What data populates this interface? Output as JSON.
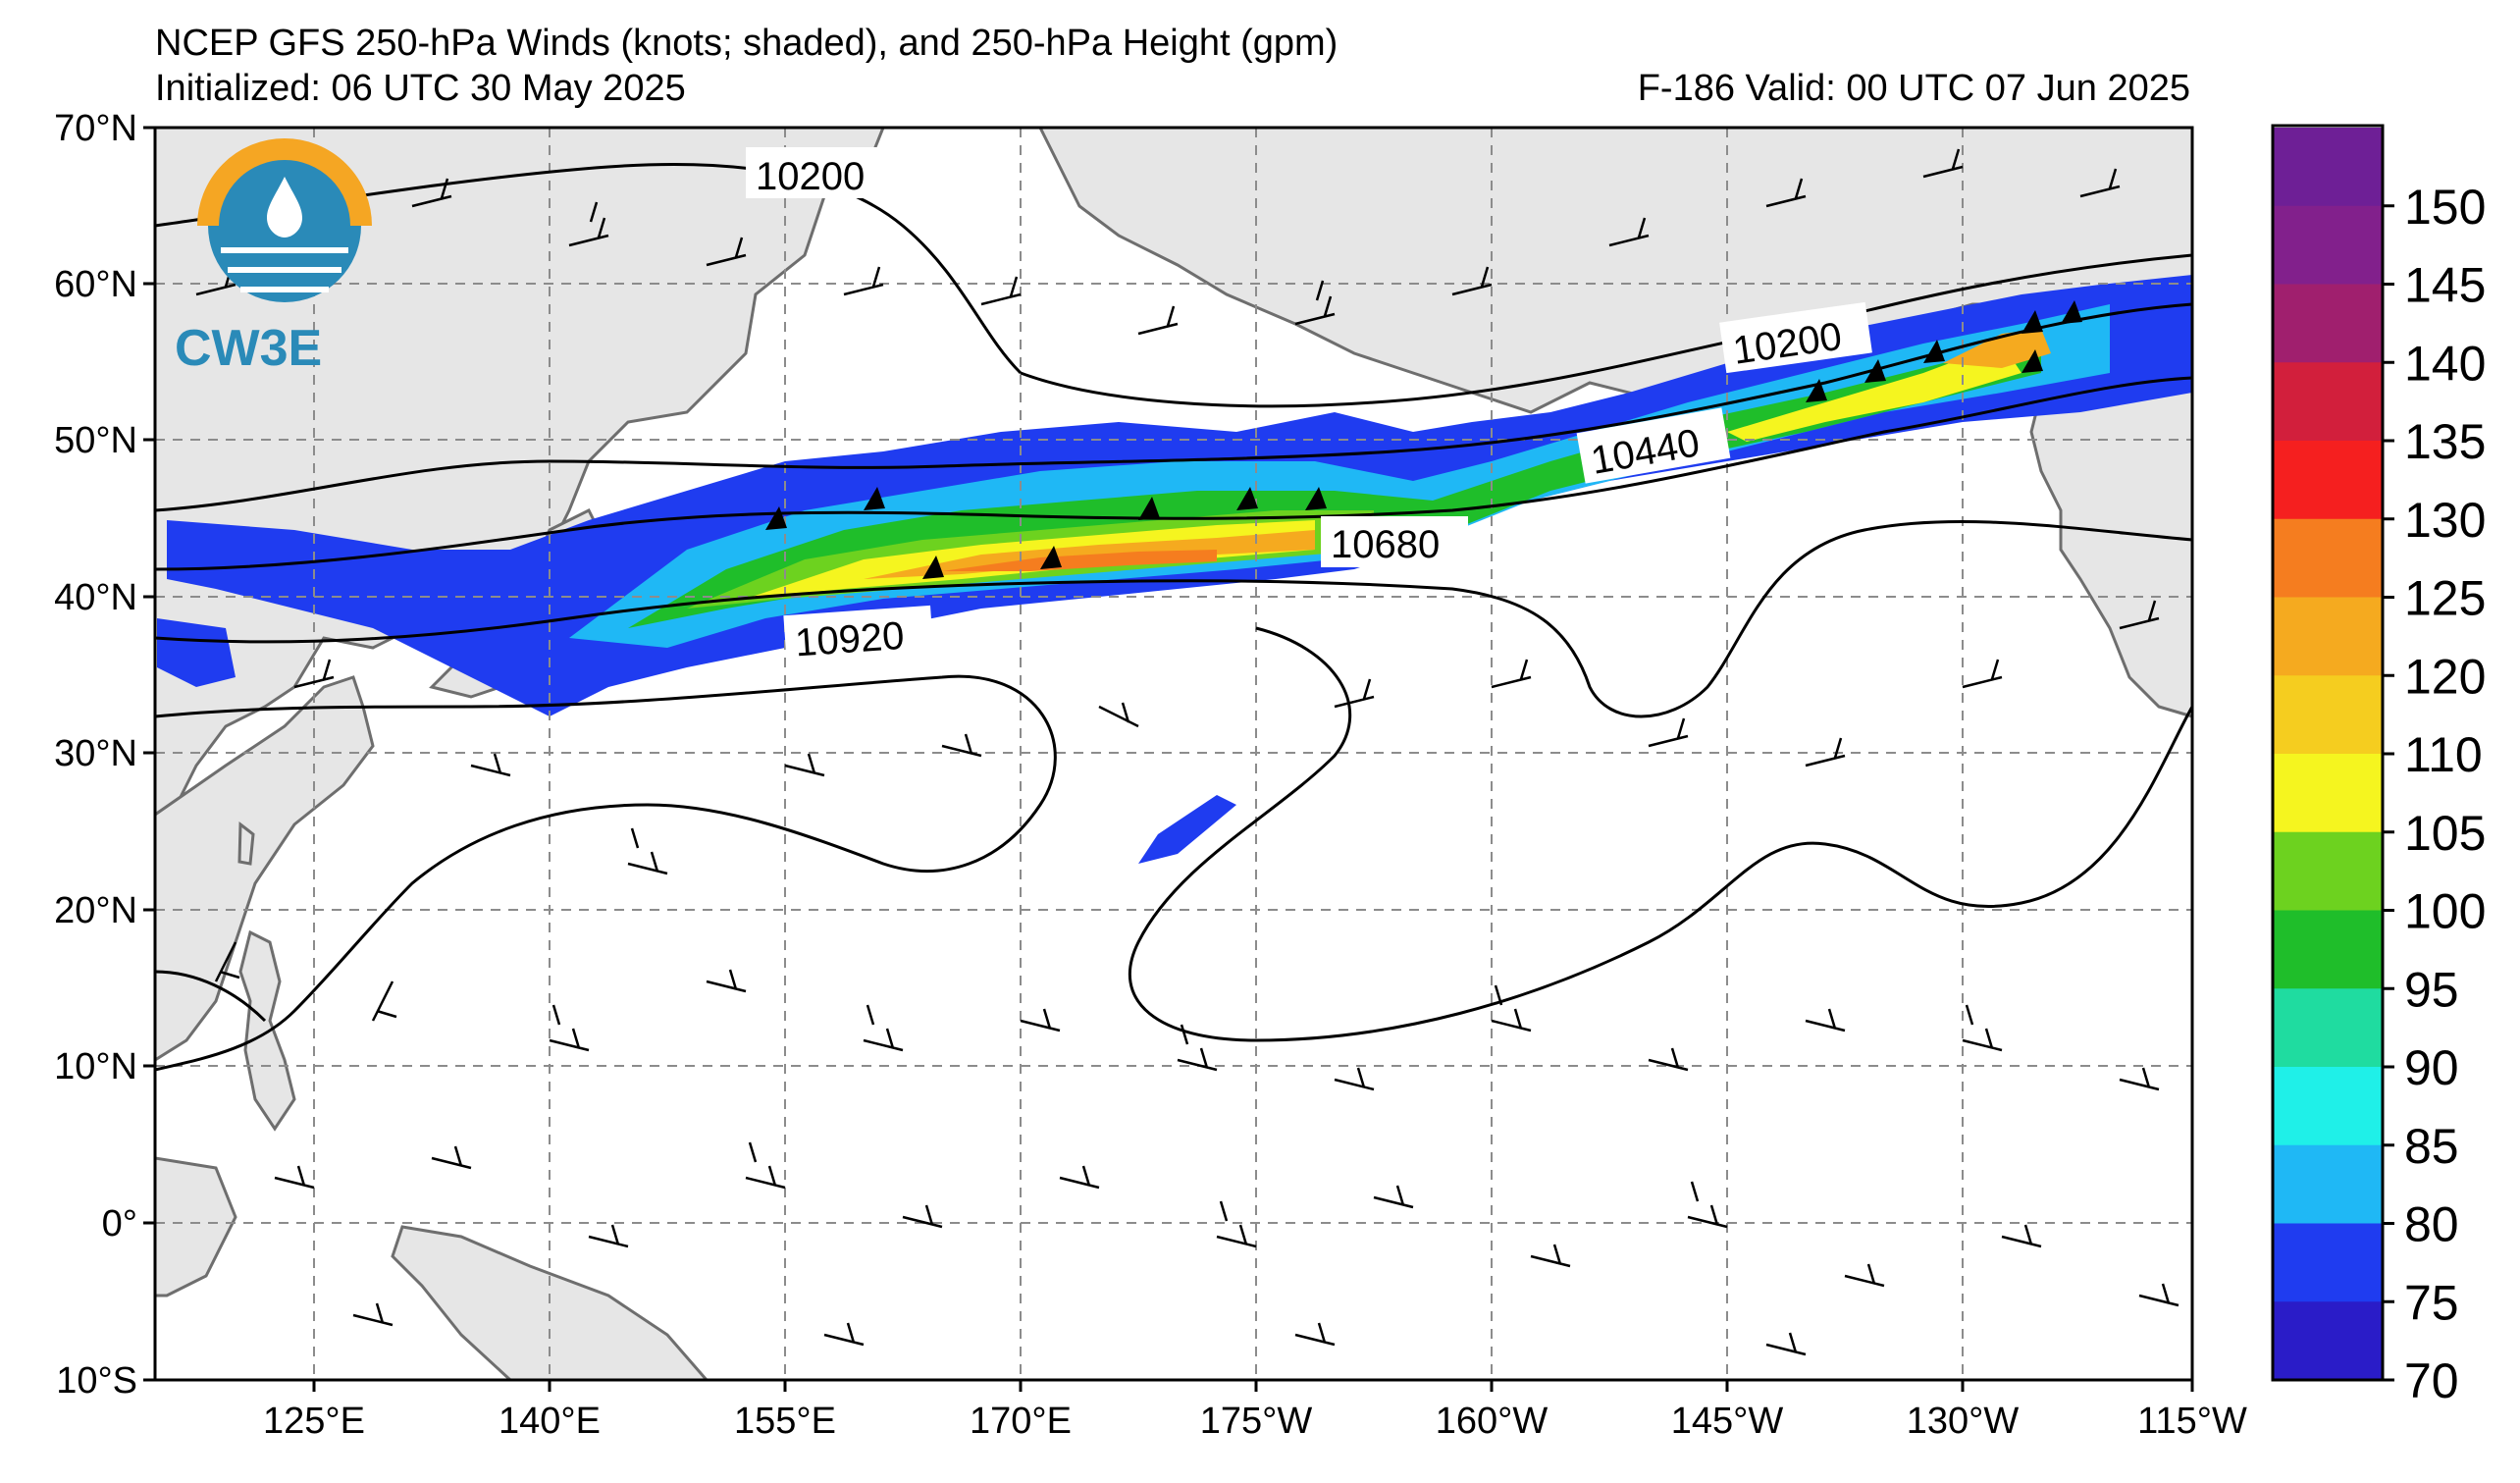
{
  "header": {
    "title": "NCEP GFS 250-hPa Winds (knots; shaded), and 250-hPa Height (gpm)",
    "initialized": "Initialized: 06 UTC 30 May 2025",
    "valid": "F-186  Valid: 00 UTC 07 Jun 2025"
  },
  "logo": {
    "text": "CW3E"
  },
  "map": {
    "lat_labels": [
      "70°N",
      "60°N",
      "50°N",
      "40°N",
      "30°N",
      "20°N",
      "10°N",
      "0°",
      "10°S"
    ],
    "lon_labels": [
      "125°E",
      "140°E",
      "155°E",
      "170°E",
      "175°W",
      "160°W",
      "145°W",
      "130°W",
      "115°W"
    ],
    "contour_labels": [
      "10200",
      "10200",
      "10440",
      "10680",
      "10920"
    ],
    "colors": {
      "land": "#e6e6e6",
      "ocean": "#ffffff",
      "coast": "#6e6e6e",
      "grid": "#8c8c8c"
    }
  },
  "colorbar": {
    "labels": [
      "150",
      "145",
      "140",
      "135",
      "130",
      "125",
      "120",
      "110",
      "105",
      "100",
      "95",
      "90",
      "85",
      "80",
      "75",
      "70"
    ],
    "colors": [
      "#2a1cc8",
      "#1f3cf0",
      "#1fb8f5",
      "#1ff0e8",
      "#1fdca0",
      "#1fbe2a",
      "#6dd21f",
      "#f5f51f",
      "#f5cd1f",
      "#f5aa1f",
      "#f57d1f",
      "#f51f1f",
      "#d21f3c",
      "#a01f6e",
      "#82208c",
      "#6e1f96"
    ]
  }
}
